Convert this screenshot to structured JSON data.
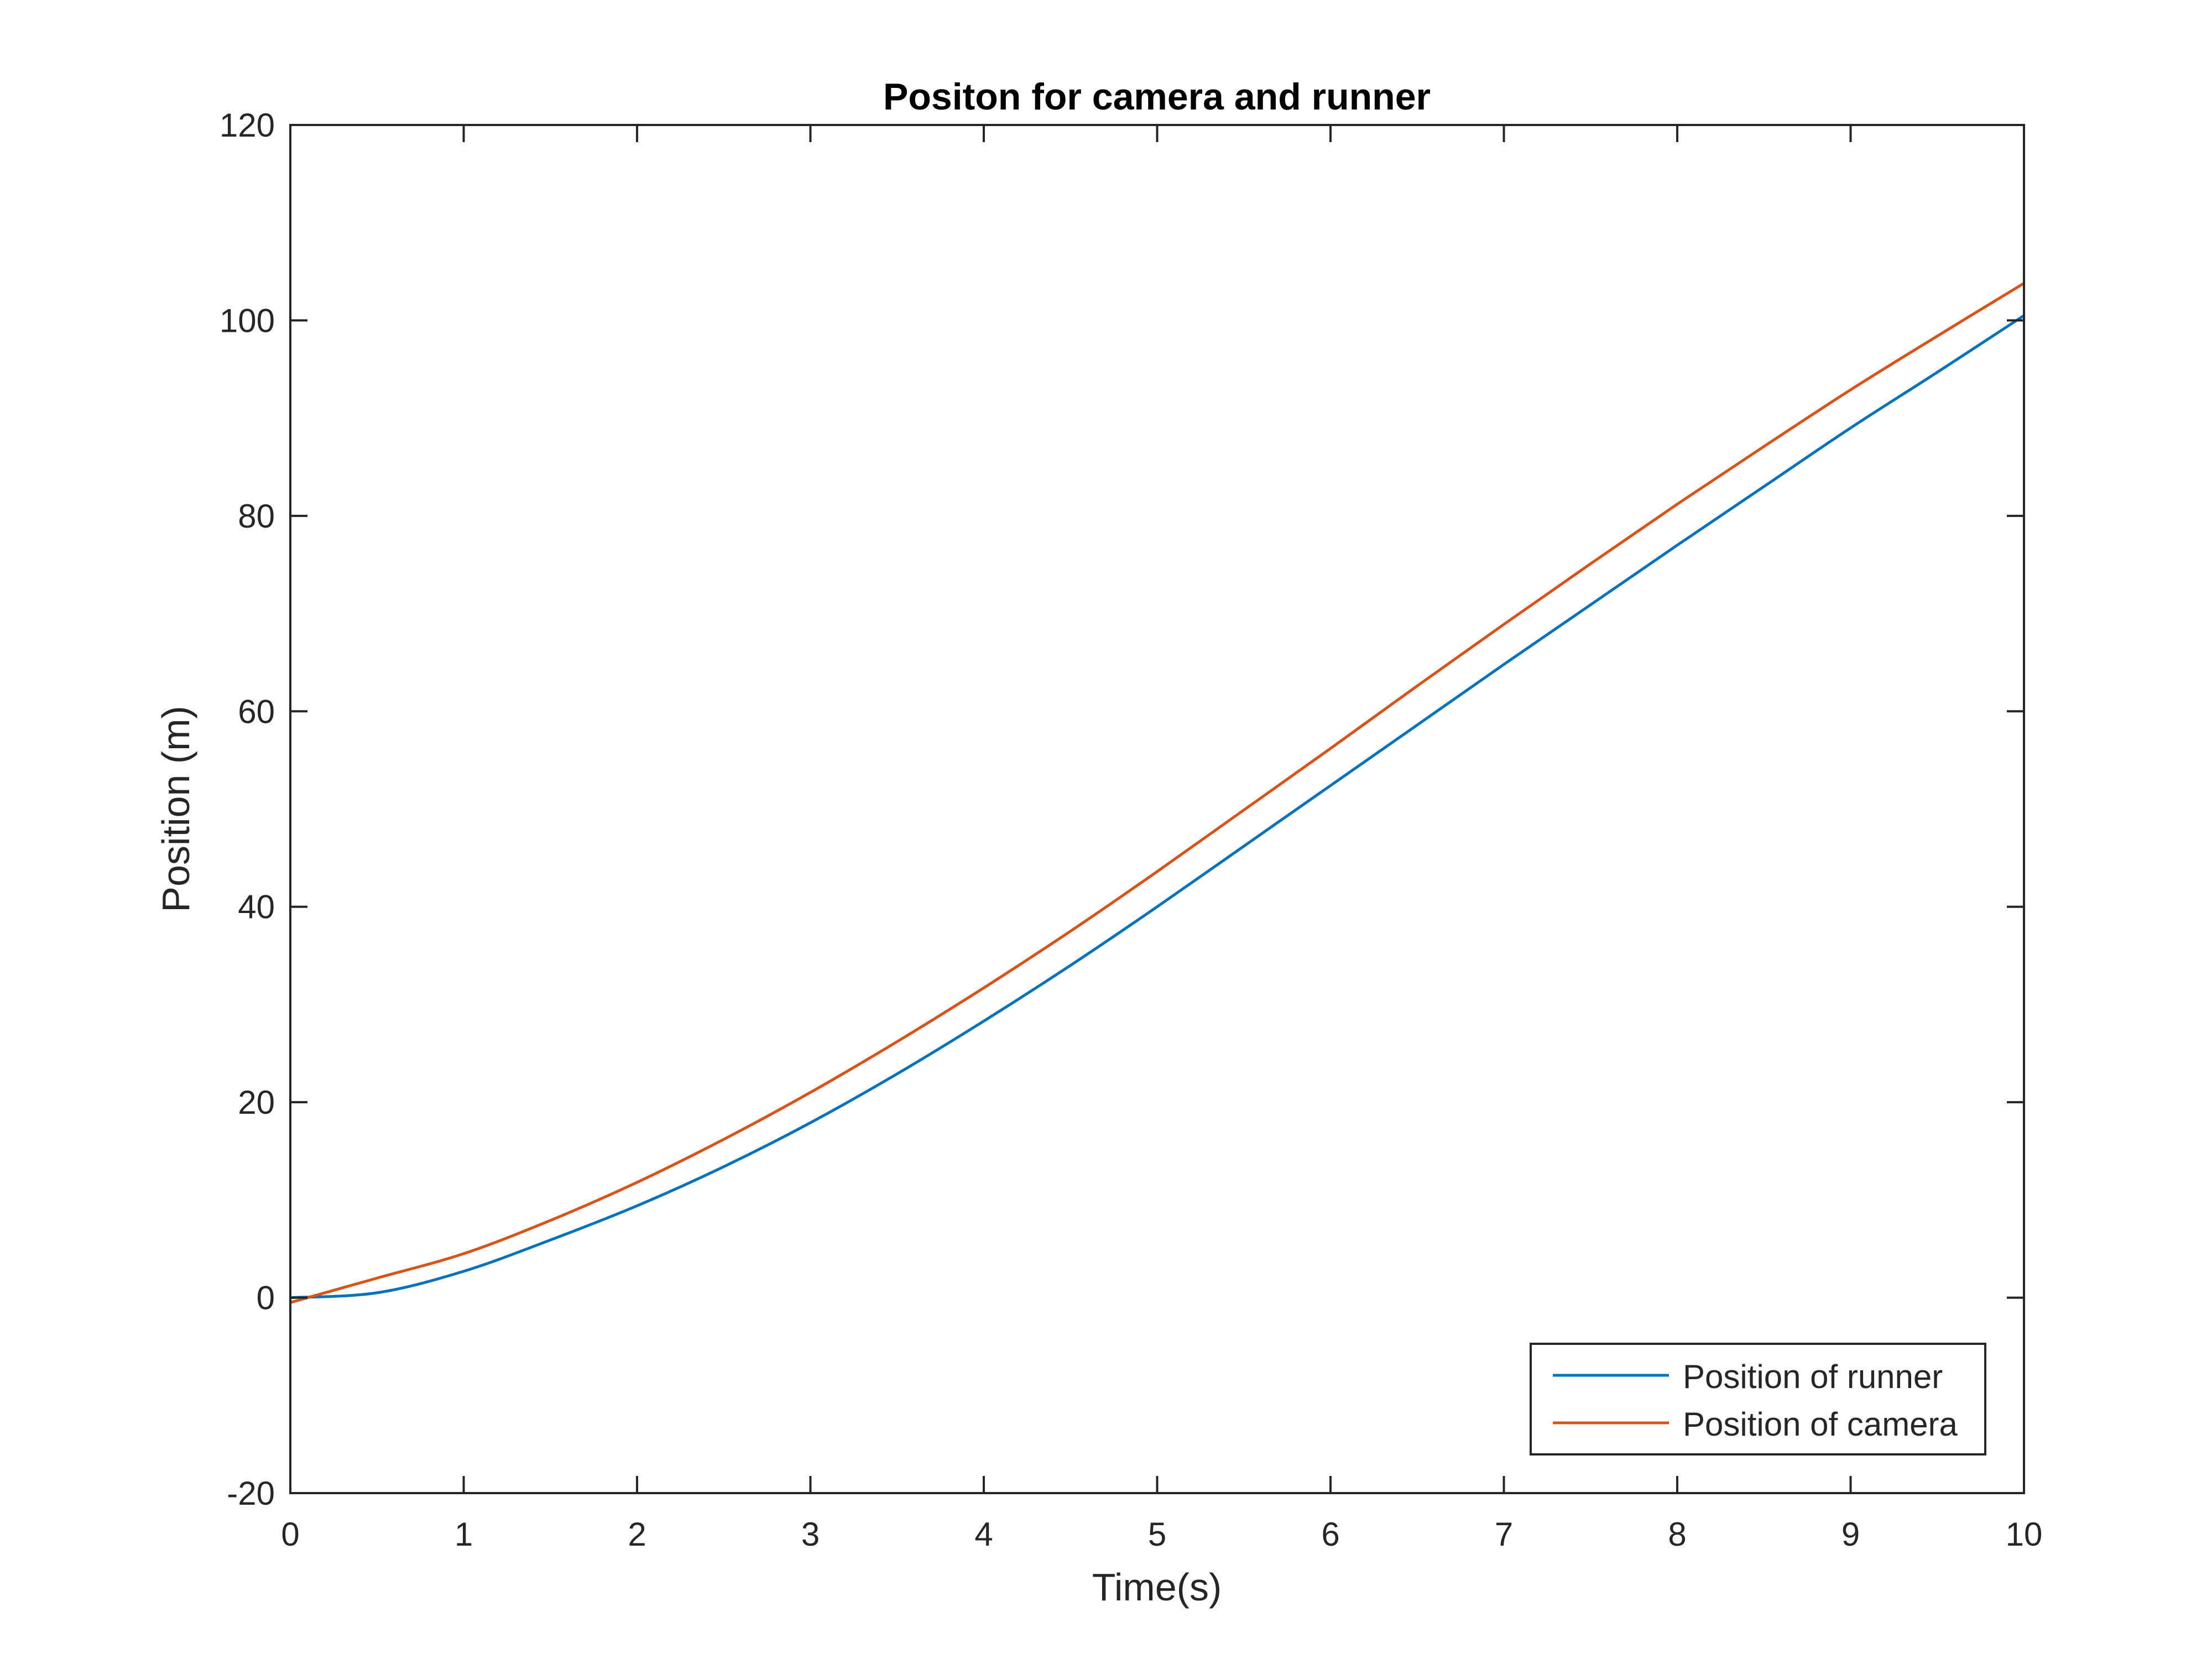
{
  "chart_data": {
    "type": "line",
    "title": "Positon for camera and runner",
    "xlabel": "Time(s)",
    "ylabel": "Position (m)",
    "xlim": [
      0,
      10
    ],
    "ylim": [
      -20,
      120
    ],
    "xticks": [
      0,
      1,
      2,
      3,
      4,
      5,
      6,
      7,
      8,
      9,
      10
    ],
    "yticks": [
      -20,
      0,
      20,
      40,
      60,
      80,
      100,
      120
    ],
    "grid": false,
    "legend_position": "bottom-right",
    "x": [
      0,
      0.5,
      1,
      1.5,
      2,
      2.5,
      3,
      3.5,
      4,
      4.5,
      5,
      5.5,
      6,
      6.5,
      7,
      7.5,
      8,
      8.5,
      9,
      9.5,
      10
    ],
    "series": [
      {
        "name": "Position of runner",
        "color": "#0072BD",
        "values": [
          0,
          0.5,
          2.7,
          5.9,
          9.4,
          13.4,
          17.9,
          22.9,
          28.3,
          34,
          40,
          46.2,
          52.4,
          58.6,
          64.8,
          70.9,
          77,
          83,
          89,
          94.7,
          100.5
        ]
      },
      {
        "name": "Position of camera",
        "color": "#D95319",
        "values": [
          -0.5,
          2,
          4.5,
          7.9,
          11.8,
          16.2,
          21,
          26.2,
          31.7,
          37.5,
          43.6,
          49.9,
          56.2,
          62.6,
          68.9,
          75.1,
          81.2,
          87.1,
          92.9,
          98.4,
          103.8
        ]
      }
    ]
  }
}
